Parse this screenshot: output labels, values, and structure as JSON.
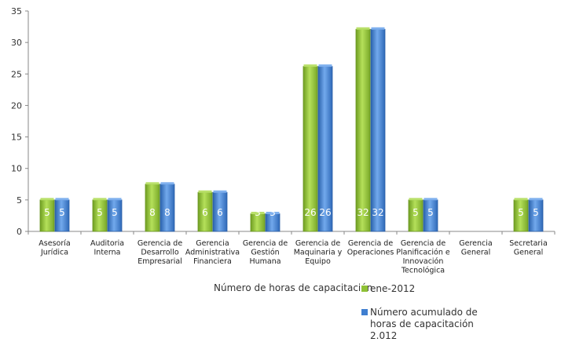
{
  "chart_data": {
    "type": "bar",
    "categories": [
      "Asesoría Jurídica",
      "Auditoria Interna",
      "Gerencia de Desarrollo Empresarial",
      "Gerencia Administrativa Financiera",
      "Gerencia de Gestión Humana",
      "Gerencia de Maquinaria y Equipo",
      "Gerencia de Operaciones",
      "Gerencia de Planificación e Innovación Tecnológica",
      "Gerencia General",
      "Secretaria General"
    ],
    "category_lines": [
      [
        "Asesoría",
        "Jurídica"
      ],
      [
        "Auditoria",
        "Interna"
      ],
      [
        "Gerencia de",
        "Desarrollo",
        "Empresarial"
      ],
      [
        "Gerencia",
        "Administrativa",
        "Financiera"
      ],
      [
        "Gerencia de",
        "Gestión",
        "Humana"
      ],
      [
        "Gerencia de",
        "Maquinaria y",
        "Equipo"
      ],
      [
        "Gerencia de",
        "Operaciones"
      ],
      [
        "Gerencia de",
        "Planificación e",
        "Innovación",
        "Tecnológica"
      ],
      [
        "Gerencia",
        "General"
      ],
      [
        "Secretaria",
        "General"
      ]
    ],
    "series": [
      {
        "name": "ene-2012",
        "color": "#8fc136",
        "values": [
          5,
          5,
          7.5,
          6.2,
          2.8,
          26.2,
          32.1,
          5,
          null,
          5
        ],
        "labels": [
          "5",
          "5",
          "8",
          "6",
          "3",
          "26",
          "32",
          "5",
          "",
          "5"
        ]
      },
      {
        "name": "Número acumulado de horas de capacitación 2.012",
        "color": "#3f7fd0",
        "values": [
          5,
          5,
          7.5,
          6.2,
          2.8,
          26.2,
          32.1,
          5,
          null,
          5
        ],
        "labels": [
          "5",
          "5",
          "8",
          "6",
          "3",
          "26",
          "32",
          "5",
          "",
          "5"
        ]
      }
    ],
    "title": "",
    "xlabel": "Número de horas de capacitación",
    "ylabel": "",
    "ylim": [
      0,
      35
    ],
    "yticks": [
      0,
      5,
      10,
      15,
      20,
      25,
      30,
      35
    ],
    "grid": false,
    "legend": {
      "title": "Número de horas de capacitación",
      "placement": "bottom",
      "items": [
        {
          "label": "ene-2012",
          "color": "#8fc136"
        },
        {
          "label": "Número acumulado de horas de capacitación 2.012",
          "color": "#3f7fd0"
        }
      ]
    }
  }
}
